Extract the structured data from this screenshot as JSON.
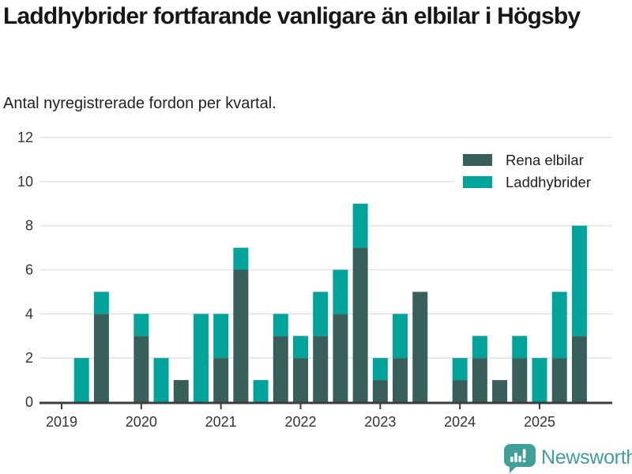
{
  "header": {
    "title": "Laddhybrider fortfarande vanligare än elbilar i Högsby",
    "subtitle": "Antal nyregistrerade fordon per kvartal."
  },
  "chart_data": {
    "type": "bar",
    "stacked": true,
    "categories": [
      "2019 Q1",
      "2019 Q2",
      "2019 Q3",
      "2019 Q4",
      "2020 Q1",
      "2020 Q2",
      "2020 Q3",
      "2020 Q4",
      "2021 Q1",
      "2021 Q2",
      "2021 Q3",
      "2021 Q4",
      "2022 Q1",
      "2022 Q2",
      "2022 Q3",
      "2022 Q4",
      "2023 Q1",
      "2023 Q2",
      "2023 Q3",
      "2023 Q4",
      "2024 Q1",
      "2024 Q2",
      "2024 Q3",
      "2024 Q4",
      "2025 Q1",
      "2025 Q2",
      "2025 Q3"
    ],
    "series": [
      {
        "name": "Rena elbilar",
        "color": "#395f5b",
        "values": [
          0,
          0,
          4,
          0,
          3,
          0,
          1,
          0,
          2,
          6,
          0,
          3,
          2,
          3,
          4,
          7,
          1,
          2,
          5,
          0,
          1,
          2,
          1,
          2,
          0,
          2,
          3
        ]
      },
      {
        "name": "Laddhybrider",
        "color": "#00a49b",
        "values": [
          0,
          2,
          1,
          0,
          1,
          2,
          0,
          4,
          2,
          1,
          1,
          1,
          1,
          2,
          2,
          2,
          1,
          2,
          0,
          0,
          1,
          1,
          0,
          1,
          2,
          3,
          5
        ]
      }
    ],
    "x_tick_labels": [
      "2019",
      "2020",
      "2021",
      "2022",
      "2023",
      "2024",
      "2025"
    ],
    "y_ticks": [
      0,
      2,
      4,
      6,
      8,
      10,
      12
    ],
    "ylim": [
      0,
      12
    ],
    "grid": "horizontal",
    "legend_position": "top-right"
  },
  "style": {
    "axis_color": "#3d3d3d",
    "grid_color": "#e4e4e4",
    "tick_label_color": "#333333",
    "legend_text_color": "#1f1f1f",
    "brand_color": "#3fa099"
  },
  "footer": {
    "brand": "Newsworthy"
  }
}
